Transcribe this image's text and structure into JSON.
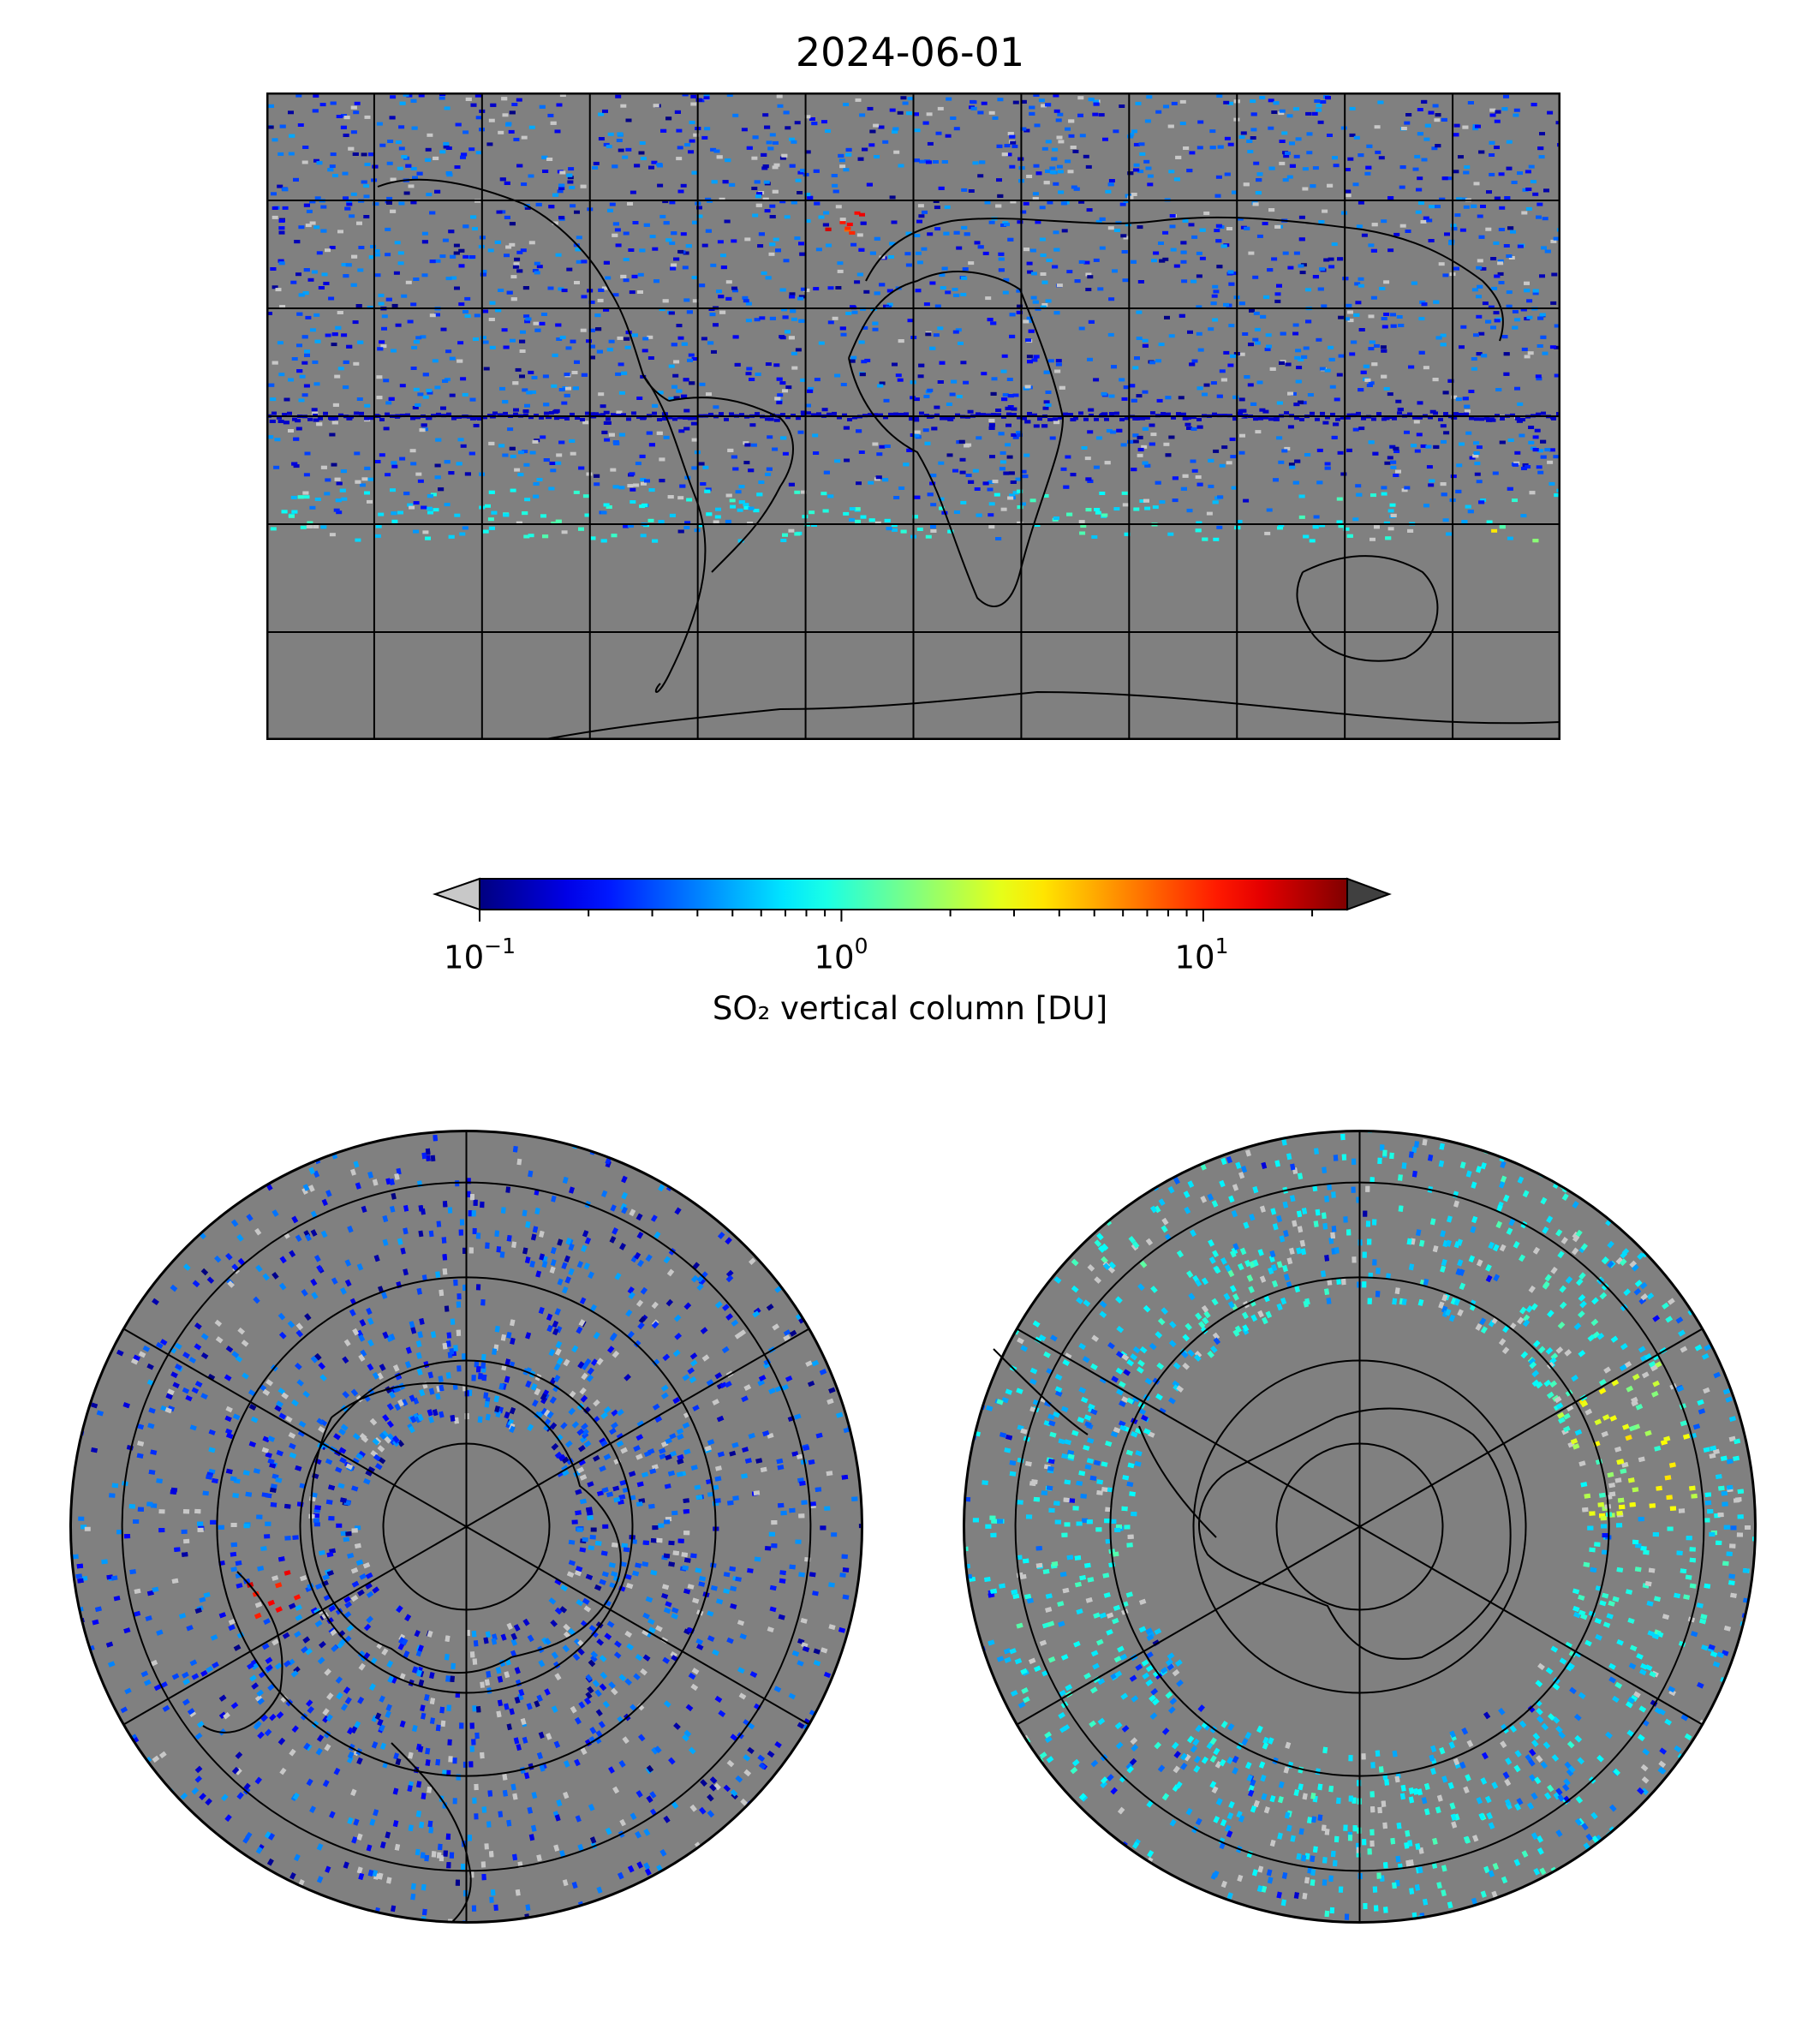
{
  "title": "2024-06-01",
  "colorbar": {
    "label": "SO₂ vertical column [DU]",
    "scale": "log",
    "range": [
      0.1,
      25
    ],
    "ticks": [
      {
        "base": "10",
        "exp": "−1",
        "value": 0.1
      },
      {
        "base": "10",
        "exp": "0",
        "value": 1
      },
      {
        "base": "10",
        "exp": "1",
        "value": 10
      }
    ],
    "colormap": "jet",
    "under_color": "#c8c8c8",
    "over_color": "#404040",
    "extend": "both"
  },
  "maps": [
    {
      "name": "global",
      "projection": "plate-carree",
      "gridlines": true
    },
    {
      "name": "north-polar",
      "projection": "north-polar-stereographic",
      "gridlines": true
    },
    {
      "name": "south-polar",
      "projection": "south-polar-stereographic",
      "gridlines": true
    }
  ],
  "colors": {
    "missing": "#808080",
    "coast": "#000000",
    "grid": "#000000"
  }
}
